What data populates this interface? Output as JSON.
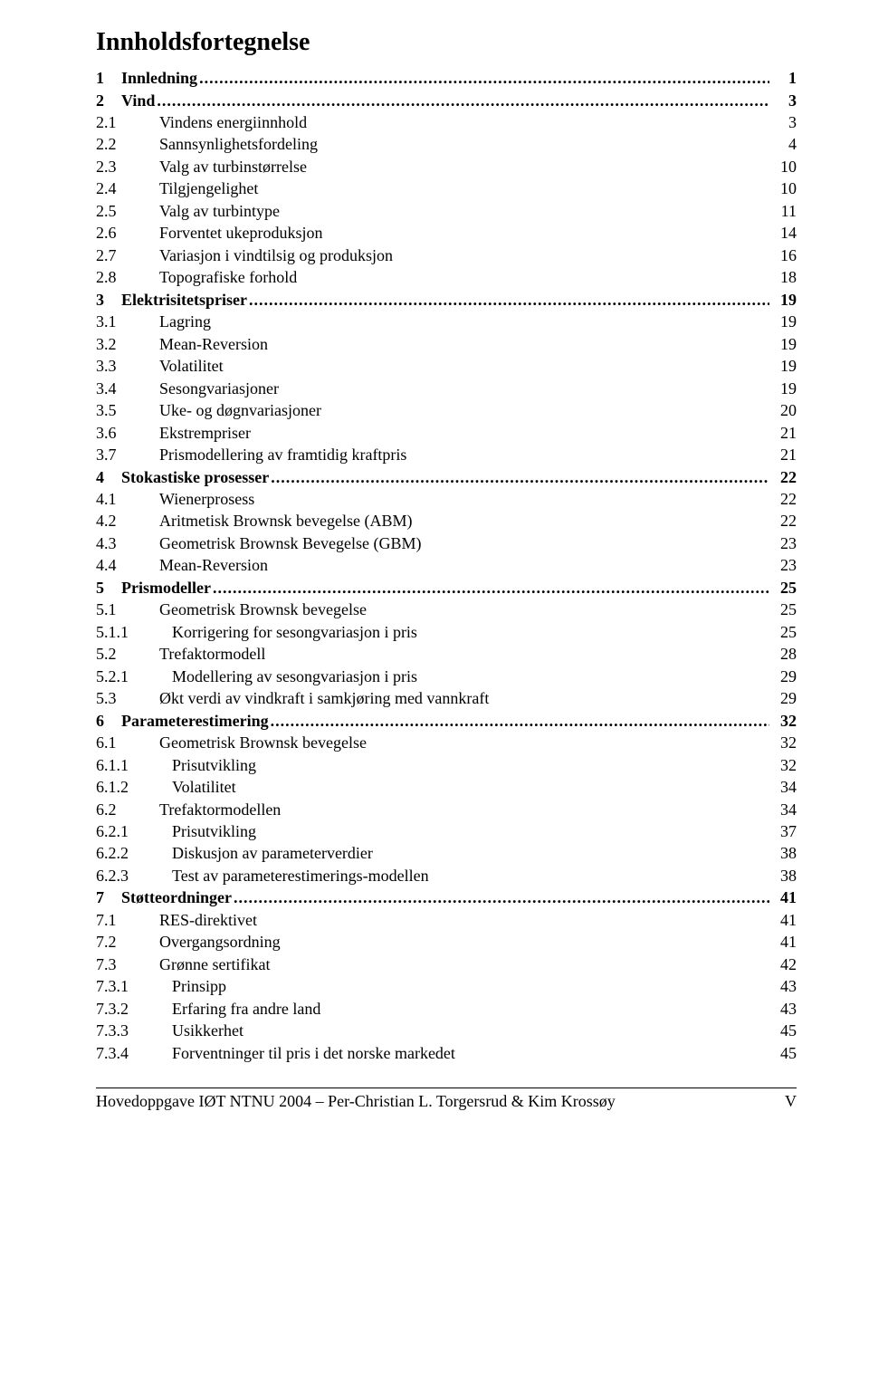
{
  "title": "Innholdsfortegnelse",
  "entries": [
    {
      "level": 1,
      "num": "1",
      "text": "Innledning",
      "page": "1",
      "bold": true,
      "leader": true
    },
    {
      "level": 1,
      "num": "2",
      "text": "Vind",
      "page": "3",
      "bold": true,
      "leader": true
    },
    {
      "level": 2,
      "num": "2.1",
      "text": "Vindens energiinnhold",
      "page": "3",
      "bold": false,
      "leader": false
    },
    {
      "level": 2,
      "num": "2.2",
      "text": "Sannsynlighetsfordeling",
      "page": "4",
      "bold": false,
      "leader": false
    },
    {
      "level": 2,
      "num": "2.3",
      "text": "Valg av turbinstørrelse",
      "page": "10",
      "bold": false,
      "leader": false
    },
    {
      "level": 2,
      "num": "2.4",
      "text": "Tilgjengelighet",
      "page": "10",
      "bold": false,
      "leader": false
    },
    {
      "level": 2,
      "num": "2.5",
      "text": "Valg av turbintype",
      "page": "11",
      "bold": false,
      "leader": false
    },
    {
      "level": 2,
      "num": "2.6",
      "text": "Forventet ukeproduksjon",
      "page": "14",
      "bold": false,
      "leader": false
    },
    {
      "level": 2,
      "num": "2.7",
      "text": "Variasjon i vindtilsig og produksjon",
      "page": "16",
      "bold": false,
      "leader": false
    },
    {
      "level": 2,
      "num": "2.8",
      "text": "Topografiske forhold",
      "page": "18",
      "bold": false,
      "leader": false
    },
    {
      "level": 1,
      "num": "3",
      "text": "Elektrisitetspriser",
      "page": "19",
      "bold": true,
      "leader": true
    },
    {
      "level": 2,
      "num": "3.1",
      "text": "Lagring",
      "page": "19",
      "bold": false,
      "leader": false
    },
    {
      "level": 2,
      "num": "3.2",
      "text": "Mean-Reversion",
      "page": "19",
      "bold": false,
      "leader": false
    },
    {
      "level": 2,
      "num": "3.3",
      "text": "Volatilitet",
      "page": "19",
      "bold": false,
      "leader": false
    },
    {
      "level": 2,
      "num": "3.4",
      "text": "Sesongvariasjoner",
      "page": "19",
      "bold": false,
      "leader": false
    },
    {
      "level": 2,
      "num": "3.5",
      "text": "Uke- og døgnvariasjoner",
      "page": "20",
      "bold": false,
      "leader": false
    },
    {
      "level": 2,
      "num": "3.6",
      "text": "Ekstrempriser",
      "page": "21",
      "bold": false,
      "leader": false
    },
    {
      "level": 2,
      "num": "3.7",
      "text": "Prismodellering av framtidig kraftpris",
      "page": "21",
      "bold": false,
      "leader": false
    },
    {
      "level": 1,
      "num": "4",
      "text": "Stokastiske prosesser",
      "page": "22",
      "bold": true,
      "leader": true
    },
    {
      "level": 2,
      "num": "4.1",
      "text": "Wienerprosess",
      "page": "22",
      "bold": false,
      "leader": false
    },
    {
      "level": 2,
      "num": "4.2",
      "text": "Aritmetisk Brownsk bevegelse (ABM)",
      "page": "22",
      "bold": false,
      "leader": false
    },
    {
      "level": 2,
      "num": "4.3",
      "text": "Geometrisk Brownsk Bevegelse (GBM)",
      "page": "23",
      "bold": false,
      "leader": false
    },
    {
      "level": 2,
      "num": "4.4",
      "text": "Mean-Reversion",
      "page": "23",
      "bold": false,
      "leader": false
    },
    {
      "level": 1,
      "num": "5",
      "text": "Prismodeller",
      "page": "25",
      "bold": true,
      "leader": true
    },
    {
      "level": 2,
      "num": "5.1",
      "text": "Geometrisk Brownsk bevegelse",
      "page": "25",
      "bold": false,
      "leader": false
    },
    {
      "level": 3,
      "num": "5.1.1",
      "text": "Korrigering for sesongvariasjon i pris",
      "page": "25",
      "bold": false,
      "leader": false
    },
    {
      "level": 2,
      "num": "5.2",
      "text": "Trefaktormodell",
      "page": "28",
      "bold": false,
      "leader": false
    },
    {
      "level": 3,
      "num": "5.2.1",
      "text": "Modellering av sesongvariasjon i pris",
      "page": "29",
      "bold": false,
      "leader": false
    },
    {
      "level": 2,
      "num": "5.3",
      "text": "Økt verdi av vindkraft i samkjøring med vannkraft",
      "page": "29",
      "bold": false,
      "leader": false
    },
    {
      "level": 1,
      "num": "6",
      "text": "Parameterestimering",
      "page": "32",
      "bold": true,
      "leader": true
    },
    {
      "level": 2,
      "num": "6.1",
      "text": "Geometrisk Brownsk bevegelse",
      "page": "32",
      "bold": false,
      "leader": false
    },
    {
      "level": 3,
      "num": "6.1.1",
      "text": "Prisutvikling",
      "page": "32",
      "bold": false,
      "leader": false
    },
    {
      "level": 3,
      "num": "6.1.2",
      "text": "Volatilitet",
      "page": "34",
      "bold": false,
      "leader": false
    },
    {
      "level": 2,
      "num": "6.2",
      "text": "Trefaktormodellen",
      "page": "34",
      "bold": false,
      "leader": false
    },
    {
      "level": 3,
      "num": "6.2.1",
      "text": "Prisutvikling",
      "page": "37",
      "bold": false,
      "leader": false
    },
    {
      "level": 3,
      "num": "6.2.2",
      "text": "Diskusjon av parameterverdier",
      "page": "38",
      "bold": false,
      "leader": false
    },
    {
      "level": 3,
      "num": "6.2.3",
      "text": "Test av parameterestimerings-modellen",
      "page": "38",
      "bold": false,
      "leader": false
    },
    {
      "level": 1,
      "num": "7",
      "text": "Støtteordninger",
      "page": "41",
      "bold": true,
      "leader": true
    },
    {
      "level": 2,
      "num": "7.1",
      "text": "RES-direktivet",
      "page": "41",
      "bold": false,
      "leader": false
    },
    {
      "level": 2,
      "num": "7.2",
      "text": "Overgangsordning",
      "page": "41",
      "bold": false,
      "leader": false
    },
    {
      "level": 2,
      "num": "7.3",
      "text": "Grønne sertifikat",
      "page": "42",
      "bold": false,
      "leader": false
    },
    {
      "level": 3,
      "num": "7.3.1",
      "text": "Prinsipp",
      "page": "43",
      "bold": false,
      "leader": false
    },
    {
      "level": 3,
      "num": "7.3.2",
      "text": "Erfaring fra andre land",
      "page": "43",
      "bold": false,
      "leader": false
    },
    {
      "level": 3,
      "num": "7.3.3",
      "text": "Usikkerhet",
      "page": "45",
      "bold": false,
      "leader": false
    },
    {
      "level": 3,
      "num": "7.3.4",
      "text": "Forventninger til pris i det norske markedet",
      "page": "45",
      "bold": false,
      "leader": false
    }
  ],
  "footer": {
    "left": "Hovedoppgave IØT NTNU 2004 – Per-Christian L. Torgersrud & Kim Krossøy",
    "right": "V"
  }
}
